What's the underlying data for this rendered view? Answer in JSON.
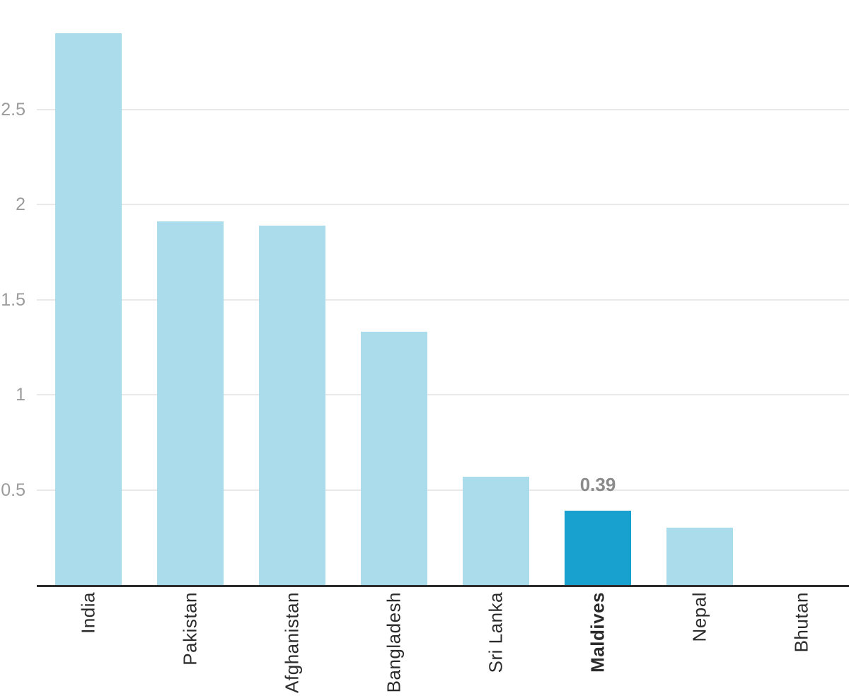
{
  "chart_data": {
    "type": "bar",
    "title": "",
    "xlabel": "",
    "ylabel": "",
    "categories": [
      "India",
      "Pakistan",
      "Afghanistan",
      "Bangladesh",
      "Sri Lanka",
      "Maldives",
      "Nepal",
      "Bhutan"
    ],
    "values": [
      2.9,
      1.91,
      1.89,
      1.33,
      0.57,
      0.39,
      0.3,
      0
    ],
    "highlighted_category": "Maldives",
    "highlighted_index": 5,
    "data_labels": [
      {
        "index": 5,
        "text": "0.39"
      }
    ],
    "ylim": [
      0,
      3
    ],
    "yticks": [
      {
        "value": 0.5,
        "label": "0.5"
      },
      {
        "value": 1,
        "label": "1"
      },
      {
        "value": 1.5,
        "label": "1.5"
      },
      {
        "value": 2,
        "label": "2"
      },
      {
        "value": 2.5,
        "label": "2.5"
      }
    ],
    "grid": true,
    "legend": "none",
    "colors": {
      "bar": "#abdcec",
      "bar_highlight": "#18a0ce",
      "gridline": "#e9e9e9",
      "axis_line": "#2d2d2d",
      "ytick_text": "#9b9b9b",
      "xtick_text": "#2b2b2b",
      "data_label_text": "#8a8a8a"
    }
  }
}
